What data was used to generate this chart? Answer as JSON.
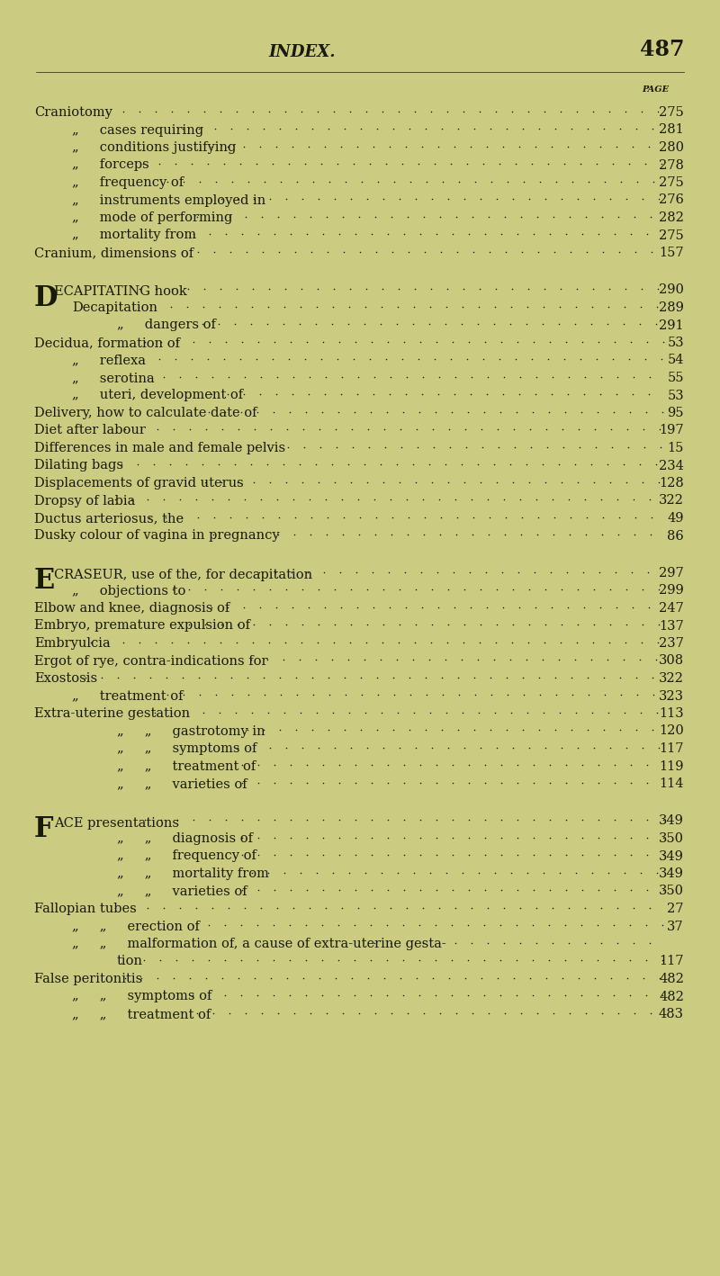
{
  "bg_color": "#cccb82",
  "text_color": "#1a1a0a",
  "header_title": "INDEX.",
  "header_page": "487",
  "page_label": "PAGE",
  "figsize": [
    8.0,
    14.18
  ],
  "lines": [
    {
      "type": "entry",
      "indent": 0,
      "big_letter": "",
      "text": "Craniotomy",
      "page": "275"
    },
    {
      "type": "entry",
      "indent": 1,
      "big_letter": "",
      "text": "„     cases requiring",
      "page": "281"
    },
    {
      "type": "entry",
      "indent": 1,
      "big_letter": "",
      "text": "„     conditions justifying",
      "page": "280"
    },
    {
      "type": "entry",
      "indent": 1,
      "big_letter": "",
      "text": "„     forceps",
      "page": "278"
    },
    {
      "type": "entry",
      "indent": 1,
      "big_letter": "",
      "text": "„     frequency of",
      "page": "275"
    },
    {
      "type": "entry",
      "indent": 1,
      "big_letter": "",
      "text": "„     instruments employed in",
      "page": "276"
    },
    {
      "type": "entry",
      "indent": 1,
      "big_letter": "",
      "text": "„     mode of performing",
      "page": "282"
    },
    {
      "type": "entry",
      "indent": 1,
      "big_letter": "",
      "text": "„     mortality from",
      "page": "275"
    },
    {
      "type": "entry",
      "indent": 0,
      "big_letter": "",
      "text": "Cranium, dimensions of",
      "page": "157"
    },
    {
      "type": "gap"
    },
    {
      "type": "entry",
      "indent": 0,
      "big_letter": "D",
      "text": "ECAPITATING hook",
      "page": "290"
    },
    {
      "type": "entry",
      "indent": 1,
      "big_letter": "",
      "text": "Decapitation",
      "page": "289"
    },
    {
      "type": "entry",
      "indent": 2,
      "big_letter": "",
      "text": "„     dangers of",
      "page": "291"
    },
    {
      "type": "entry",
      "indent": 0,
      "big_letter": "",
      "text": "Decidua, formation of",
      "page": "53"
    },
    {
      "type": "entry",
      "indent": 1,
      "big_letter": "",
      "text": "„     reflexa",
      "page": "54"
    },
    {
      "type": "entry",
      "indent": 1,
      "big_letter": "",
      "text": "„     serotina",
      "page": "55"
    },
    {
      "type": "entry",
      "indent": 1,
      "big_letter": "",
      "text": "„     uteri, development of",
      "page": "53"
    },
    {
      "type": "entry",
      "indent": 0,
      "big_letter": "",
      "text": "Delivery, how to calculate date of",
      "page": "95"
    },
    {
      "type": "entry",
      "indent": 0,
      "big_letter": "",
      "text": "Diet after labour",
      "page": "197"
    },
    {
      "type": "entry",
      "indent": 0,
      "big_letter": "",
      "text": "Differences in male and female pelvis",
      "page": "15"
    },
    {
      "type": "entry",
      "indent": 0,
      "big_letter": "",
      "text": "Dilating bags",
      "page": "234"
    },
    {
      "type": "entry",
      "indent": 0,
      "big_letter": "",
      "text": "Displacements of gravid uterus",
      "page": "128"
    },
    {
      "type": "entry",
      "indent": 0,
      "big_letter": "",
      "text": "Dropsy of labia",
      "page": "322"
    },
    {
      "type": "entry",
      "indent": 0,
      "big_letter": "",
      "text": "Ductus arteriosus, the",
      "page": "49"
    },
    {
      "type": "entry",
      "indent": 0,
      "big_letter": "",
      "text": "Dusky colour of vagina in pregnancy",
      "page": "86"
    },
    {
      "type": "gap"
    },
    {
      "type": "entry",
      "indent": 0,
      "big_letter": "E",
      "text": "CRASEUR, use of the, for decapitation",
      "page": "297"
    },
    {
      "type": "entry",
      "indent": 1,
      "big_letter": "",
      "text": "„     objections to",
      "page": "299"
    },
    {
      "type": "entry",
      "indent": 0,
      "big_letter": "",
      "text": "Elbow and knee, diagnosis of",
      "page": "247"
    },
    {
      "type": "entry",
      "indent": 0,
      "big_letter": "",
      "text": "Embryo, premature expulsion of",
      "page": "137"
    },
    {
      "type": "entry",
      "indent": 0,
      "big_letter": "",
      "text": "Embryulcia",
      "page": "237"
    },
    {
      "type": "entry",
      "indent": 0,
      "big_letter": "",
      "text": "Ergot of rye, contra-indications for",
      "page": "308"
    },
    {
      "type": "entry",
      "indent": 0,
      "big_letter": "",
      "text": "Exostosis",
      "page": "322"
    },
    {
      "type": "entry",
      "indent": 1,
      "big_letter": "",
      "text": "„     treatment of",
      "page": "323"
    },
    {
      "type": "entry",
      "indent": 0,
      "big_letter": "",
      "text": "Extra-uterine gestation",
      "page": "113"
    },
    {
      "type": "entry",
      "indent": 2,
      "big_letter": "",
      "text": "„     „     gastrotomy in",
      "page": "120"
    },
    {
      "type": "entry",
      "indent": 2,
      "big_letter": "",
      "text": "„     „     symptoms of",
      "page": "117"
    },
    {
      "type": "entry",
      "indent": 2,
      "big_letter": "",
      "text": "„     „     treatment of",
      "page": "119"
    },
    {
      "type": "entry",
      "indent": 2,
      "big_letter": "",
      "text": "„     „     varieties of",
      "page": "114"
    },
    {
      "type": "gap"
    },
    {
      "type": "entry",
      "indent": 0,
      "big_letter": "F",
      "text": "ACE presentations",
      "page": "349"
    },
    {
      "type": "entry",
      "indent": 2,
      "big_letter": "",
      "text": "„     „     diagnosis of",
      "page": "350"
    },
    {
      "type": "entry",
      "indent": 2,
      "big_letter": "",
      "text": "„     „     frequency of",
      "page": "349"
    },
    {
      "type": "entry",
      "indent": 2,
      "big_letter": "",
      "text": "„     „     mortality from",
      "page": "349"
    },
    {
      "type": "entry",
      "indent": 2,
      "big_letter": "",
      "text": "„     „     varieties of",
      "page": "350"
    },
    {
      "type": "entry",
      "indent": 0,
      "big_letter": "",
      "text": "Fallopian tubes",
      "page": "27"
    },
    {
      "type": "entry",
      "indent": 1,
      "big_letter": "",
      "text": "„     „     erection of",
      "page": "37"
    },
    {
      "type": "entry_nopage",
      "indent": 1,
      "big_letter": "",
      "text": "„     „     malformation of, a cause of extra-uterine gesta-"
    },
    {
      "type": "entry",
      "indent": 2,
      "big_letter": "",
      "text": "tion",
      "page": "117"
    },
    {
      "type": "entry",
      "indent": 0,
      "big_letter": "",
      "text": "False peritonitis",
      "page": "482"
    },
    {
      "type": "entry",
      "indent": 1,
      "big_letter": "",
      "text": "„     „     symptoms of",
      "page": "482"
    },
    {
      "type": "entry",
      "indent": 1,
      "big_letter": "",
      "text": "„     „     treatment of",
      "page": "483"
    }
  ]
}
